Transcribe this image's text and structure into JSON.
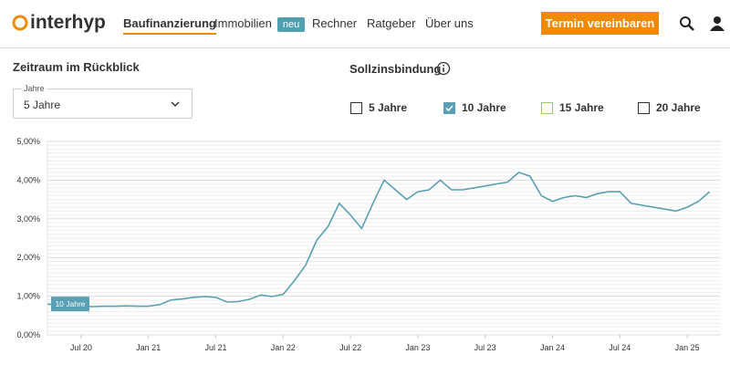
{
  "header": {
    "logo": "interhyp",
    "nav": [
      {
        "label": "Baufinanzierung",
        "active": true
      },
      {
        "label": "Immobilien",
        "badge": "neu"
      },
      {
        "label": "Rechner"
      },
      {
        "label": "Ratgeber"
      },
      {
        "label": "Über uns"
      }
    ],
    "cta": "Termin vereinbaren"
  },
  "filters": {
    "period_title": "Zeitraum im Rückblick",
    "select_label": "Jahre",
    "select_value": "5 Jahre",
    "binding_title": "Sollzinsbindung",
    "options": [
      {
        "label": "5 Jahre",
        "checked": false,
        "color": "#333333"
      },
      {
        "label": "10 Jahre",
        "checked": true,
        "color": "#5a9fb3"
      },
      {
        "label": "15 Jahre",
        "checked": false,
        "color": "#9ccc65"
      },
      {
        "label": "20 Jahre",
        "checked": false,
        "color": "#333333"
      }
    ]
  },
  "chart_data": {
    "type": "line",
    "x": [
      "2020-04",
      "2020-05",
      "2020-06",
      "2020-07",
      "2020-08",
      "2020-09",
      "2020-10",
      "2020-11",
      "2020-12",
      "2021-01",
      "2021-02",
      "2021-03",
      "2021-04",
      "2021-05",
      "2021-06",
      "2021-07",
      "2021-08",
      "2021-09",
      "2021-10",
      "2021-11",
      "2021-12",
      "2022-01",
      "2022-02",
      "2022-03",
      "2022-04",
      "2022-05",
      "2022-06",
      "2022-07",
      "2022-08",
      "2022-09",
      "2022-10",
      "2022-11",
      "2022-12",
      "2023-01",
      "2023-02",
      "2023-03",
      "2023-04",
      "2023-05",
      "2023-06",
      "2023-07",
      "2023-08",
      "2023-09",
      "2023-10",
      "2023-11",
      "2023-12",
      "2024-01",
      "2024-02",
      "2024-03",
      "2024-04",
      "2024-05",
      "2024-06",
      "2024-07",
      "2024-08",
      "2024-09",
      "2024-10",
      "2024-11",
      "2024-12",
      "2025-01",
      "2025-02",
      "2025-03"
    ],
    "series": [
      {
        "name": "10 Jahre",
        "color": "#5a9fb3",
        "values": [
          0.8,
          0.75,
          0.74,
          0.75,
          0.73,
          0.74,
          0.74,
          0.75,
          0.74,
          0.74,
          0.78,
          0.9,
          0.93,
          0.97,
          0.99,
          0.97,
          0.85,
          0.86,
          0.92,
          1.03,
          0.99,
          1.05,
          1.4,
          1.8,
          2.45,
          2.8,
          3.4,
          3.1,
          2.75,
          3.4,
          4.0,
          3.75,
          3.5,
          3.7,
          3.75,
          4.0,
          3.75,
          3.75,
          3.8,
          3.85,
          3.9,
          3.95,
          4.2,
          4.1,
          3.6,
          3.45,
          3.55,
          3.6,
          3.55,
          3.65,
          3.7,
          3.7,
          3.4,
          3.35,
          3.3,
          3.25,
          3.2,
          3.3,
          3.45,
          3.7
        ]
      }
    ],
    "xlim": [
      "2020-04",
      "2025-04"
    ],
    "xticks": [
      {
        "value": "2020-07",
        "label": "Jul 20"
      },
      {
        "value": "2021-01",
        "label": "Jan 21"
      },
      {
        "value": "2021-07",
        "label": "Jul 21"
      },
      {
        "value": "2022-01",
        "label": "Jan 22"
      },
      {
        "value": "2022-07",
        "label": "Jul 22"
      },
      {
        "value": "2023-01",
        "label": "Jan 23"
      },
      {
        "value": "2023-07",
        "label": "Jul 23"
      },
      {
        "value": "2024-01",
        "label": "Jan 24"
      },
      {
        "value": "2024-07",
        "label": "Jul 24"
      },
      {
        "value": "2025-01",
        "label": "Jan 25"
      }
    ],
    "ylim": [
      0,
      5
    ],
    "yticks": [
      {
        "value": 0,
        "label": "0,00%"
      },
      {
        "value": 1,
        "label": "1,00%"
      },
      {
        "value": 2,
        "label": "2,00%"
      },
      {
        "value": 3,
        "label": "3,00%"
      },
      {
        "value": 4,
        "label": "4,00%"
      },
      {
        "value": 5,
        "label": "5,00%"
      }
    ],
    "grid": true
  }
}
